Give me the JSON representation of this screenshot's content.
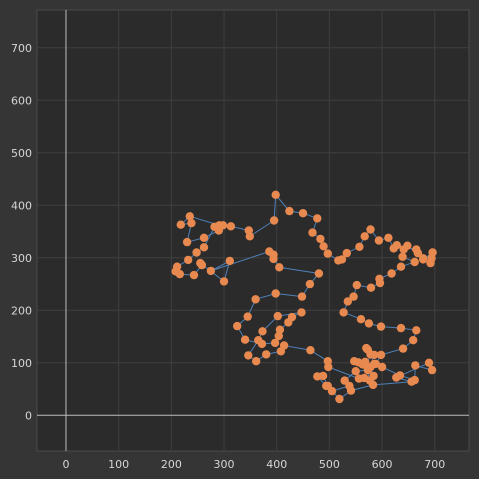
{
  "chart_data": {
    "type": "line",
    "title": "",
    "xlabel": "",
    "ylabel": "",
    "xlim": [
      -55,
      765
    ],
    "ylim": [
      -68,
      772
    ],
    "x_ticks": [
      0,
      100,
      200,
      300,
      400,
      500,
      600,
      700
    ],
    "y_ticks": [
      0,
      100,
      200,
      300,
      400,
      500,
      600,
      700
    ],
    "grid": true,
    "colors": {
      "background": "#353535",
      "plot_area": "#2b2b2b",
      "grid": "#3f3f3f",
      "axis": "#bdbdbd",
      "line": "#4f81b8",
      "marker": "#e8894f"
    },
    "series": [
      {
        "closed": true,
        "x": [
          275,
          311,
          300,
          255,
          258,
          243,
          216,
          208,
          211,
          232,
          248,
          262,
          282,
          291,
          235,
          218,
          238,
          230,
          262,
          290,
          298,
          313,
          347,
          349,
          395,
          398,
          424,
          450,
          477,
          468,
          483,
          489,
          497,
          517,
          524,
          533,
          557,
          567,
          578,
          594,
          612,
          622,
          628,
          665,
          668,
          678,
          696,
          692,
          694,
          678,
          648,
          641,
          639,
          662,
          636,
          618,
          595,
          596,
          579,
          552,
          546,
          535,
          527,
          560,
          575,
          598,
          636,
          665,
          659,
          640,
          598,
          588,
          585,
          578,
          570,
          573,
          585,
          568,
          547,
          555,
          563,
          578,
          584,
          573,
          550,
          529,
          538,
          505,
          494,
          477,
          488,
          497,
          519,
          541,
          583,
          656,
          627,
          689,
          695,
          663,
          662,
          634,
          600,
          568,
          577,
          566,
          556,
          498,
          497,
          464,
          414,
          408,
          380,
          361,
          346,
          365,
          373,
          402,
          447,
          429,
          422,
          406,
          404,
          397,
          372,
          340,
          325,
          345,
          360,
          398,
          448,
          463,
          480,
          405,
          394,
          394,
          386
        ],
        "y": [
          275,
          294,
          255,
          290,
          286,
          267,
          269,
          274,
          283,
          296,
          310,
          320,
          359,
          362,
          379,
          363,
          366,
          330,
          338,
          352,
          362,
          360,
          352,
          341,
          371,
          420,
          389,
          385,
          375,
          348,
          336,
          322,
          308,
          295,
          297,
          309,
          321,
          341,
          354,
          333,
          338,
          318,
          324,
          316,
          309,
          297,
          310,
          290,
          299,
          299,
          323,
          316,
          302,
          292,
          283,
          270,
          260,
          252,
          243,
          248,
          226,
          217,
          196,
          183,
          175,
          169,
          166,
          162,
          143,
          127,
          115,
          98,
          98,
          116,
          128,
          125,
          115,
          102,
          103,
          101,
          97,
          92,
          75,
          86,
          84,
          66,
          56,
          46,
          56,
          74,
          75,
          56,
          31,
          47,
          58,
          64,
          72,
          100,
          86,
          95,
          67,
          76,
          92,
          96,
          66,
          71,
          70,
          92,
          103,
          124,
          133,
          122,
          116,
          103,
          114,
          143,
          160,
          189,
          196,
          187,
          177,
          163,
          151,
          138,
          136,
          144,
          170,
          188,
          221,
          232,
          226,
          250,
          270,
          282,
          298,
          306,
          312
        ]
      }
    ]
  }
}
